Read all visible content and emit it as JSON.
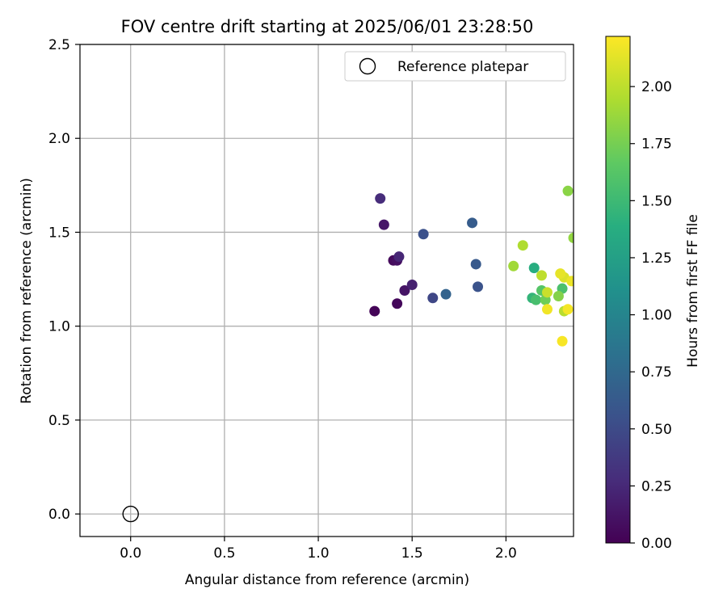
{
  "chart_data": {
    "type": "scatter",
    "title": "FOV centre drift starting at 2025/06/01 23:28:50",
    "xlabel": "Angular distance from reference (arcmin)",
    "ylabel": "Rotation from reference (arcmin)",
    "xlim": [
      -0.27,
      2.36
    ],
    "ylim": [
      -0.12,
      2.5
    ],
    "xticks": [
      "0.0",
      "0.5",
      "1.0",
      "1.5",
      "2.0"
    ],
    "xtick_values": [
      0.0,
      0.5,
      1.0,
      1.5,
      2.0
    ],
    "yticks": [
      "0.0",
      "0.5",
      "1.0",
      "1.5",
      "2.0",
      "2.5"
    ],
    "ytick_values": [
      0.0,
      0.5,
      1.0,
      1.5,
      2.0,
      2.5
    ],
    "grid": true,
    "legend": {
      "position": "top-right",
      "entries": [
        "Reference platepar"
      ]
    },
    "reference_point": {
      "x": 0.0,
      "y": 0.0,
      "label": "Reference platepar"
    },
    "colorbar": {
      "label": "Hours from first FF file",
      "colormap": "viridis",
      "range": [
        0.0,
        2.22
      ],
      "ticks": [
        "0.00",
        "0.25",
        "0.50",
        "0.75",
        "1.00",
        "1.25",
        "1.50",
        "1.75",
        "2.00"
      ],
      "tick_values": [
        0.0,
        0.25,
        0.5,
        0.75,
        1.0,
        1.25,
        1.5,
        1.75,
        2.0
      ]
    },
    "series": [
      {
        "points": [
          {
            "x": 1.3,
            "y": 1.08,
            "c": 0.02
          },
          {
            "x": 1.42,
            "y": 1.12,
            "c": 0.04
          },
          {
            "x": 1.4,
            "y": 1.35,
            "c": 0.06
          },
          {
            "x": 1.42,
            "y": 1.35,
            "c": 0.09
          },
          {
            "x": 1.46,
            "y": 1.19,
            "c": 0.12
          },
          {
            "x": 1.35,
            "y": 1.54,
            "c": 0.14
          },
          {
            "x": 1.5,
            "y": 1.22,
            "c": 0.2
          },
          {
            "x": 1.43,
            "y": 1.37,
            "c": 0.24
          },
          {
            "x": 1.33,
            "y": 1.68,
            "c": 0.28
          },
          {
            "x": 1.61,
            "y": 1.15,
            "c": 0.47
          },
          {
            "x": 1.56,
            "y": 1.49,
            "c": 0.55
          },
          {
            "x": 1.85,
            "y": 1.21,
            "c": 0.56
          },
          {
            "x": 1.84,
            "y": 1.33,
            "c": 0.62
          },
          {
            "x": 1.82,
            "y": 1.55,
            "c": 0.64
          },
          {
            "x": 1.68,
            "y": 1.17,
            "c": 0.7
          },
          {
            "x": 2.15,
            "y": 1.31,
            "c": 1.38
          },
          {
            "x": 2.14,
            "y": 1.15,
            "c": 1.45
          },
          {
            "x": 2.16,
            "y": 1.14,
            "c": 1.55
          },
          {
            "x": 2.3,
            "y": 1.2,
            "c": 1.57
          },
          {
            "x": 2.19,
            "y": 1.19,
            "c": 1.62
          },
          {
            "x": 2.21,
            "y": 1.14,
            "c": 1.72
          },
          {
            "x": 2.28,
            "y": 1.16,
            "c": 1.8
          },
          {
            "x": 2.33,
            "y": 1.72,
            "c": 1.82
          },
          {
            "x": 2.36,
            "y": 1.47,
            "c": 1.85
          },
          {
            "x": 2.04,
            "y": 1.32,
            "c": 1.9
          },
          {
            "x": 2.09,
            "y": 1.43,
            "c": 1.95
          },
          {
            "x": 2.31,
            "y": 1.08,
            "c": 1.98
          },
          {
            "x": 2.19,
            "y": 1.27,
            "c": 2.0
          },
          {
            "x": 2.22,
            "y": 1.18,
            "c": 2.04
          },
          {
            "x": 2.31,
            "y": 1.26,
            "c": 2.1
          },
          {
            "x": 2.29,
            "y": 1.28,
            "c": 2.14
          },
          {
            "x": 2.35,
            "y": 1.24,
            "c": 2.16
          },
          {
            "x": 2.22,
            "y": 1.09,
            "c": 2.18
          },
          {
            "x": 2.33,
            "y": 1.09,
            "c": 2.19
          },
          {
            "x": 2.3,
            "y": 0.92,
            "c": 2.2
          }
        ]
      }
    ]
  }
}
